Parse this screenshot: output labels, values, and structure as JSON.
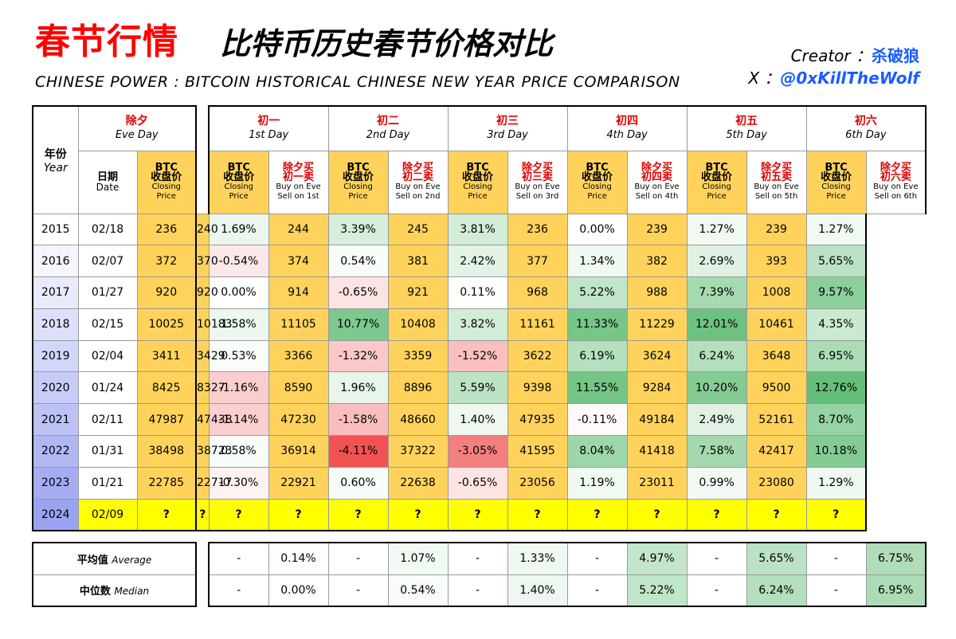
{
  "header": {
    "title_red": "春节行情",
    "title_black": "比特币历史春节价格对比",
    "title_en": "CHINESE POWER : BITCOIN HISTORICAL CHINESE NEW YEAR PRICE COMPARISON",
    "creator_label": "Creator ：",
    "creator_name": "杀破狼",
    "x_label": "X ：",
    "x_handle": "@0xKillTheWolf"
  },
  "colors": {
    "price_yellow": "#ffd35b",
    "query_yellow": "#ffff00",
    "year_blue_start": "#ffffff",
    "year_blue_end": "#9aa3f0",
    "positive_green": "#5dbb72",
    "negative_red": "#f04a4a"
  },
  "table": {
    "year_header_cn": "年份",
    "year_header_en": "Year",
    "eve": {
      "cn": "除夕",
      "en": "Eve Day",
      "date_cn": "日期",
      "date_en": "Date",
      "price_cn1": "BTC",
      "price_cn2": "收盘价",
      "price_en1": "Closing",
      "price_en2": "Price"
    },
    "days": [
      {
        "cn": "初一",
        "en": "1st Day",
        "sub_cn_a": "除夕买",
        "sub_cn_b": "初一卖",
        "sub_en_a": "Buy on Eve",
        "sub_en_b": "Sell on 1st"
      },
      {
        "cn": "初二",
        "en": "2nd Day",
        "sub_cn_a": "除夕买",
        "sub_cn_b": "初二卖",
        "sub_en_a": "Buy on Eve",
        "sub_en_b": "Sell on 2nd"
      },
      {
        "cn": "初三",
        "en": "3rd Day",
        "sub_cn_a": "除夕买",
        "sub_cn_b": "初三卖",
        "sub_en_a": "Buy on Eve",
        "sub_en_b": "Sell on 3rd"
      },
      {
        "cn": "初四",
        "en": "4th Day",
        "sub_cn_a": "除夕买",
        "sub_cn_b": "初四卖",
        "sub_en_a": "Buy on Eve",
        "sub_en_b": "Sell on 4th"
      },
      {
        "cn": "初五",
        "en": "5th Day",
        "sub_cn_a": "除夕买",
        "sub_cn_b": "初五卖",
        "sub_en_a": "Buy on Eve",
        "sub_en_b": "Sell on 5th"
      },
      {
        "cn": "初六",
        "en": "6th Day",
        "sub_cn_a": "除夕买",
        "sub_cn_b": "初六卖",
        "sub_en_a": "Buy on Eve",
        "sub_en_b": "Sell on 6th"
      }
    ],
    "price_cn1": "BTC",
    "price_cn2": "收盘价",
    "price_en1": "Closing",
    "price_en2": "Price"
  },
  "chart_data": {
    "type": "table",
    "title": "比特币历史春节价格对比",
    "columns": [
      "Year",
      "Eve Date",
      "Eve Close",
      "1st Close",
      "1st %",
      "2nd Close",
      "2nd %",
      "3rd Close",
      "3rd %",
      "4th Close",
      "4th %",
      "5th Close",
      "5th %",
      "6th Close",
      "6th %"
    ],
    "rows": [
      {
        "year": "2015",
        "date": "02/18",
        "eve": "236",
        "days": [
          [
            "240",
            "1.69%"
          ],
          [
            "244",
            "3.39%"
          ],
          [
            "245",
            "3.81%"
          ],
          [
            "236",
            "0.00%"
          ],
          [
            "239",
            "1.27%"
          ],
          [
            "239",
            "1.27%"
          ]
        ]
      },
      {
        "year": "2016",
        "date": "02/07",
        "eve": "372",
        "days": [
          [
            "370",
            "-0.54%"
          ],
          [
            "374",
            "0.54%"
          ],
          [
            "381",
            "2.42%"
          ],
          [
            "377",
            "1.34%"
          ],
          [
            "382",
            "2.69%"
          ],
          [
            "393",
            "5.65%"
          ]
        ]
      },
      {
        "year": "2017",
        "date": "01/27",
        "eve": "920",
        "days": [
          [
            "920",
            "0.00%"
          ],
          [
            "914",
            "-0.65%"
          ],
          [
            "921",
            "0.11%"
          ],
          [
            "968",
            "5.22%"
          ],
          [
            "988",
            "7.39%"
          ],
          [
            "1008",
            "9.57%"
          ]
        ]
      },
      {
        "year": "2018",
        "date": "02/15",
        "eve": "10025",
        "days": [
          [
            "10183",
            "1.58%"
          ],
          [
            "11105",
            "10.77%"
          ],
          [
            "10408",
            "3.82%"
          ],
          [
            "11161",
            "11.33%"
          ],
          [
            "11229",
            "12.01%"
          ],
          [
            "10461",
            "4.35%"
          ]
        ]
      },
      {
        "year": "2019",
        "date": "02/04",
        "eve": "3411",
        "days": [
          [
            "3429",
            "0.53%"
          ],
          [
            "3366",
            "-1.32%"
          ],
          [
            "3359",
            "-1.52%"
          ],
          [
            "3622",
            "6.19%"
          ],
          [
            "3624",
            "6.24%"
          ],
          [
            "3648",
            "6.95%"
          ]
        ]
      },
      {
        "year": "2020",
        "date": "01/24",
        "eve": "8425",
        "days": [
          [
            "8327",
            "-1.16%"
          ],
          [
            "8590",
            "1.96%"
          ],
          [
            "8896",
            "5.59%"
          ],
          [
            "9398",
            "11.55%"
          ],
          [
            "9284",
            "10.20%"
          ],
          [
            "9500",
            "12.76%"
          ]
        ]
      },
      {
        "year": "2021",
        "date": "02/11",
        "eve": "47987",
        "days": [
          [
            "47438",
            "-1.14%"
          ],
          [
            "47230",
            "-1.58%"
          ],
          [
            "48660",
            "1.40%"
          ],
          [
            "47935",
            "-0.11%"
          ],
          [
            "49184",
            "2.49%"
          ],
          [
            "52161",
            "8.70%"
          ]
        ]
      },
      {
        "year": "2022",
        "date": "01/31",
        "eve": "38498",
        "days": [
          [
            "38723",
            "0.58%"
          ],
          [
            "36914",
            "-4.11%"
          ],
          [
            "37322",
            "-3.05%"
          ],
          [
            "41595",
            "8.04%"
          ],
          [
            "41418",
            "7.58%"
          ],
          [
            "42417",
            "10.18%"
          ]
        ]
      },
      {
        "year": "2023",
        "date": "01/21",
        "eve": "22785",
        "days": [
          [
            "22717",
            "-0.30%"
          ],
          [
            "22921",
            "0.60%"
          ],
          [
            "22638",
            "-0.65%"
          ],
          [
            "23056",
            "1.19%"
          ],
          [
            "23011",
            "0.99%"
          ],
          [
            "23080",
            "1.29%"
          ]
        ]
      },
      {
        "year": "2024",
        "date": "02/09",
        "eve": "?",
        "days": [
          [
            "?",
            "?"
          ],
          [
            "?",
            "?"
          ],
          [
            "?",
            "?"
          ],
          [
            "?",
            "?"
          ],
          [
            "?",
            "?"
          ],
          [
            "?",
            "?"
          ]
        ]
      }
    ],
    "stats": [
      {
        "label_cn": "平均值",
        "label_en": "Average",
        "values": [
          [
            "-",
            "0.14%"
          ],
          [
            "-",
            "1.07%"
          ],
          [
            "-",
            "1.33%"
          ],
          [
            "-",
            "4.97%"
          ],
          [
            "-",
            "5.65%"
          ],
          [
            "-",
            "6.75%"
          ]
        ]
      },
      {
        "label_cn": "中位数",
        "label_en": "Median",
        "values": [
          [
            "-",
            "0.00%"
          ],
          [
            "-",
            "0.54%"
          ],
          [
            "-",
            "1.40%"
          ],
          [
            "-",
            "5.22%"
          ],
          [
            "-",
            "6.24%"
          ],
          [
            "-",
            "6.95%"
          ]
        ]
      }
    ]
  }
}
